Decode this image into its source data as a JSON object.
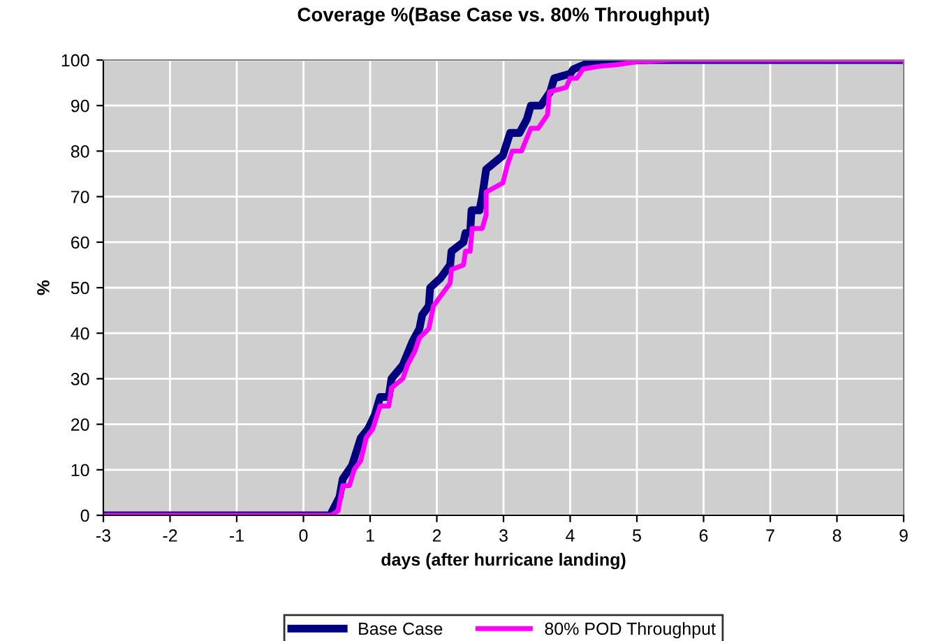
{
  "chart_data": {
    "type": "line",
    "title": "Coverage %(Base Case vs. 80% Throughput)",
    "xlabel": "days (after hurricane landing)",
    "ylabel": "%",
    "xlim": [
      -3,
      9
    ],
    "xticks": [
      -3,
      -2,
      -1,
      0,
      1,
      2,
      3,
      4,
      5,
      6,
      7,
      8,
      9
    ],
    "ylim": [
      0,
      100
    ],
    "yticks": [
      0,
      10,
      20,
      30,
      40,
      50,
      60,
      70,
      80,
      90,
      100
    ],
    "grid": true,
    "legend": "bottom",
    "marker": "none",
    "line_style": "solid",
    "series": [
      {
        "name": "Base Case",
        "color": "#000080",
        "x": [
          -3,
          0.4,
          0.54,
          0.59,
          0.73,
          0.86,
          0.97,
          1.07,
          1.15,
          1.28,
          1.32,
          1.49,
          1.63,
          1.74,
          1.78,
          1.88,
          1.9,
          2.05,
          2.2,
          2.22,
          2.4,
          2.43,
          2.5,
          2.52,
          2.64,
          2.68,
          2.74,
          2.99,
          3.1,
          3.24,
          3.35,
          3.41,
          3.56,
          3.7,
          3.76,
          4.0,
          4.05,
          4.21,
          4.48,
          5.2,
          9
        ],
        "values": [
          0,
          0,
          4,
          8,
          11,
          17,
          19,
          22,
          26,
          26,
          30,
          33,
          38,
          41,
          44,
          46,
          50,
          52,
          55,
          58,
          60,
          62,
          62,
          67,
          67,
          70,
          76,
          79,
          84,
          84,
          87,
          90,
          90,
          93,
          96,
          97,
          98,
          99,
          99.7,
          100,
          100
        ]
      },
      {
        "name": "80% POD Throughput",
        "color": "#ff00ff",
        "x": [
          -3,
          0.42,
          0.52,
          0.59,
          0.69,
          0.76,
          0.86,
          0.94,
          1.04,
          1.15,
          1.28,
          1.32,
          1.49,
          1.56,
          1.67,
          1.74,
          1.88,
          1.95,
          2.05,
          2.2,
          2.22,
          2.4,
          2.43,
          2.5,
          2.53,
          2.68,
          2.74,
          2.74,
          2.99,
          3.06,
          3.13,
          3.27,
          3.41,
          3.52,
          3.66,
          3.69,
          3.94,
          4.0,
          4.1,
          4.19,
          4.42,
          4.71,
          5.03,
          5.5,
          9
        ],
        "values": [
          0,
          0,
          1,
          6.5,
          6.5,
          10,
          12,
          17,
          19,
          24,
          24,
          28,
          30,
          33,
          36,
          39,
          41,
          46,
          48,
          51,
          54,
          55,
          58,
          58,
          63,
          63,
          66,
          71,
          73,
          77,
          80,
          80,
          85,
          85,
          88,
          93,
          94,
          96,
          96,
          98,
          98.6,
          99,
          99.7,
          100,
          100
        ]
      }
    ]
  }
}
